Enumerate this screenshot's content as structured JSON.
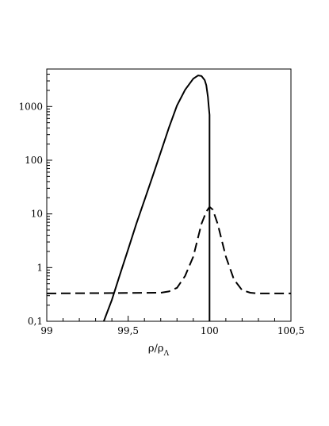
{
  "chart_data": {
    "type": "line",
    "title": "",
    "xlabel": "ρ/ρ",
    "xlabel_subscript": "Λ",
    "ylabel": "",
    "xlim": [
      99,
      100.5
    ],
    "ylim": [
      0.1,
      5000
    ],
    "y_scale": "log",
    "grid": false,
    "x_ticks": [
      {
        "value": 99,
        "label": "99"
      },
      {
        "value": 99.5,
        "label": "99,5"
      },
      {
        "value": 100,
        "label": "100"
      },
      {
        "value": 100.5,
        "label": "100,5"
      }
    ],
    "y_ticks": [
      {
        "value": 0.1,
        "label": "0,1"
      },
      {
        "value": 1,
        "label": "1"
      },
      {
        "value": 10,
        "label": "10"
      },
      {
        "value": 100,
        "label": "100"
      },
      {
        "value": 1000,
        "label": "1000"
      }
    ],
    "series": [
      {
        "style": "solid",
        "color": "#000000",
        "x": [
          99.35,
          99.4,
          99.45,
          99.5,
          99.55,
          99.6,
          99.65,
          99.7,
          99.75,
          99.8,
          99.85,
          99.9,
          99.93,
          99.95,
          99.97,
          99.98,
          99.99,
          99.995,
          100.0,
          100.0
        ],
        "y": [
          0.1,
          0.25,
          0.75,
          2.2,
          6.5,
          18,
          50,
          140,
          400,
          1050,
          2050,
          3300,
          3800,
          3700,
          3100,
          2500,
          1500,
          1000,
          700,
          0.1
        ]
      },
      {
        "style": "dashed",
        "color": "#000000",
        "x": [
          99.0,
          99.7,
          99.75,
          99.8,
          99.85,
          99.9,
          99.95,
          99.98,
          100.0,
          100.02,
          100.05,
          100.1,
          100.15,
          100.2,
          100.25,
          100.3,
          100.5
        ],
        "y": [
          0.33,
          0.34,
          0.36,
          0.42,
          0.7,
          1.6,
          6.5,
          11,
          13.5,
          12,
          6.5,
          1.6,
          0.6,
          0.38,
          0.34,
          0.33,
          0.33
        ]
      }
    ]
  }
}
